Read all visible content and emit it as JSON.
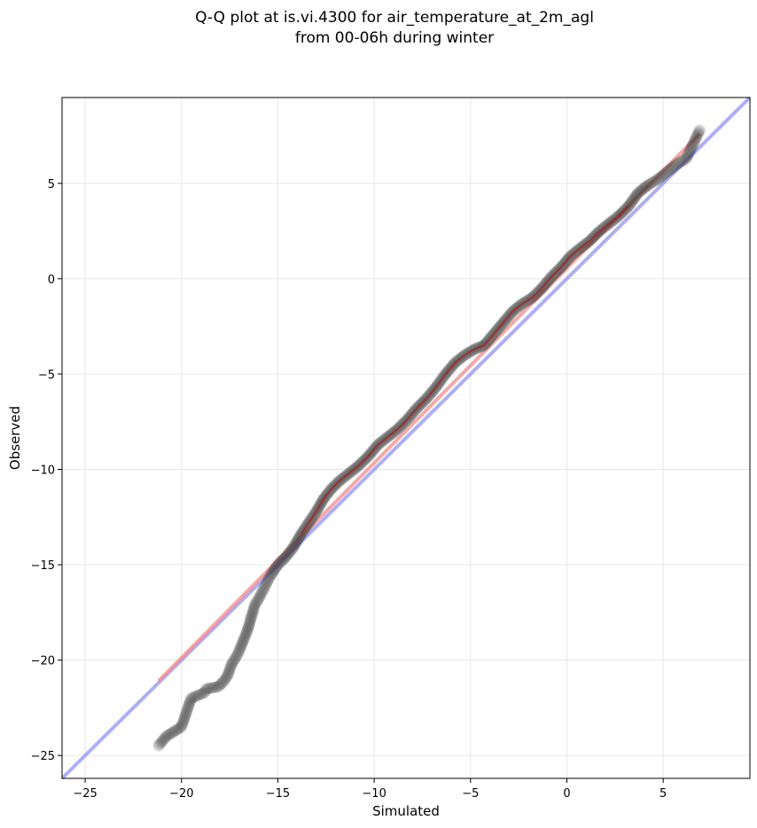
{
  "chart_data": {
    "type": "scatter",
    "title_lines": [
      "Q-Q plot at is.vi.4300 for air_temperature_at_2m_agl",
      "from 00-06h during winter"
    ],
    "xlabel": "Simulated",
    "ylabel": "Observed",
    "xlim": [
      -26.2,
      9.5
    ],
    "ylim": [
      -26.2,
      9.5
    ],
    "xticks": [
      -25,
      -20,
      -15,
      -10,
      -5,
      0,
      5
    ],
    "yticks": [
      -25,
      -20,
      -15,
      -10,
      -5,
      0,
      5
    ],
    "grid": true,
    "colors": {
      "points": "#333333",
      "identity_line": "#8c8cf0",
      "fit_line": "#f08c8c",
      "fit_curve": "#b01818",
      "fit_curve_blue": "#141478"
    },
    "identity_line": {
      "from": [
        -26.2,
        -26.2
      ],
      "to": [
        9.5,
        9.5
      ]
    },
    "fit_line": {
      "from": [
        -21.2,
        -21.1
      ],
      "to": [
        6.9,
        7.6
      ]
    },
    "quantiles": {
      "x": [
        -21.2,
        -20.8,
        -20.0,
        -19.5,
        -18.8,
        -18.7,
        -18.1,
        -17.8,
        -17.6,
        -17.4,
        -17.2,
        -17.0,
        -16.8,
        -16.6,
        -16.5,
        -16.4,
        -16.3,
        -16.2,
        -16.0,
        -15.8,
        -15.6,
        -15.4,
        -15.2,
        -15.0,
        -14.6,
        -14.2,
        -13.8,
        -13.4,
        -13.0,
        -12.6,
        -12.2,
        -11.8,
        -11.3,
        -10.8,
        -10.3,
        -9.8,
        -9.3,
        -8.8,
        -8.3,
        -7.8,
        -7.3,
        -6.8,
        -6.3,
        -5.8,
        -5.3,
        -4.8,
        -4.3,
        -3.8,
        -3.3,
        -2.8,
        -2.3,
        -1.8,
        -1.3,
        -0.8,
        -0.3,
        0.2,
        0.7,
        1.2,
        1.7,
        2.2,
        2.7,
        3.2,
        3.7,
        4.2,
        4.7,
        5.2,
        5.7,
        6.2,
        6.9
      ],
      "y": [
        -24.5,
        -24.0,
        -23.5,
        -22.0,
        -21.7,
        -21.5,
        -21.4,
        -21.1,
        -20.8,
        -20.2,
        -19.9,
        -19.5,
        -19.0,
        -18.5,
        -18.2,
        -17.8,
        -17.5,
        -17.1,
        -16.8,
        -16.4,
        -16.0,
        -15.6,
        -15.3,
        -15.0,
        -14.6,
        -14.1,
        -13.4,
        -12.8,
        -12.2,
        -11.5,
        -11.0,
        -10.6,
        -10.2,
        -9.8,
        -9.3,
        -8.7,
        -8.3,
        -7.9,
        -7.4,
        -6.8,
        -6.3,
        -5.7,
        -5.0,
        -4.4,
        -4.0,
        -3.7,
        -3.5,
        -2.9,
        -2.3,
        -1.7,
        -1.3,
        -1.0,
        -0.5,
        0.1,
        0.6,
        1.2,
        1.6,
        2.0,
        2.5,
        2.9,
        3.3,
        3.8,
        4.5,
        4.9,
        5.2,
        5.6,
        6.0,
        6.3,
        7.8
      ]
    }
  }
}
